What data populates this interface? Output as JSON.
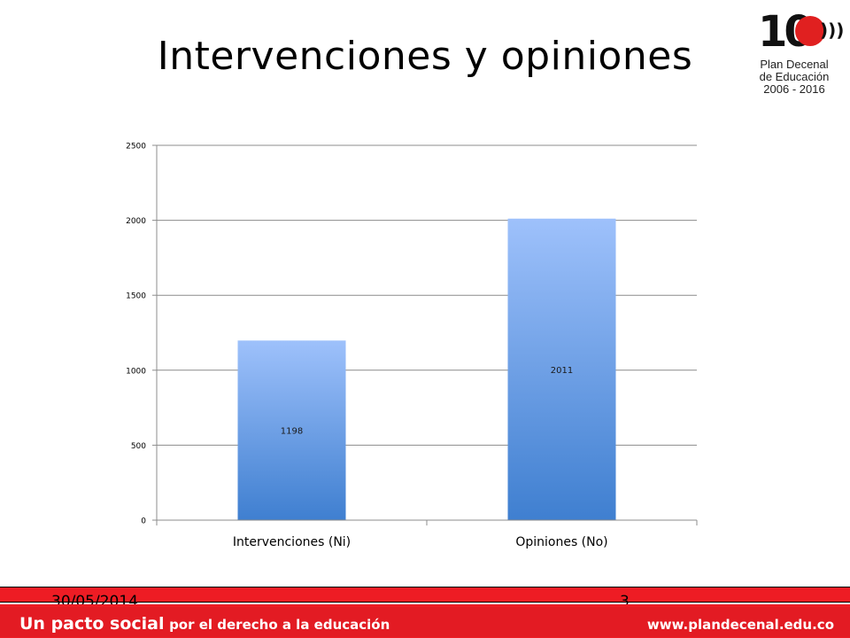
{
  "slide": {
    "title": "Intervenciones y opiniones"
  },
  "logo": {
    "number": "10",
    "line1": "Plan Decenal",
    "line2": "de Educación",
    "line3": "2006 - 2016"
  },
  "chart_data": {
    "type": "bar",
    "categories": [
      "Intervenciones (Ni)",
      "Opiniones (No)"
    ],
    "values": [
      1198,
      2011
    ],
    "data_labels": [
      "1198",
      "2011"
    ],
    "yticks": [
      0,
      500,
      1000,
      1500,
      2000,
      2500
    ],
    "ylim": [
      0,
      2500
    ],
    "grid": true,
    "legend": "none",
    "bar_color_top": "#9ec1fb",
    "bar_color_bottom": "#3f7fd0"
  },
  "footer": {
    "date": "30/05/2014",
    "page": "3",
    "tagline_main": "Un pacto social",
    "tagline_rest": "por el derecho a la educación",
    "website": "www.plandecenal.edu.co",
    "color": "#e31b23"
  }
}
